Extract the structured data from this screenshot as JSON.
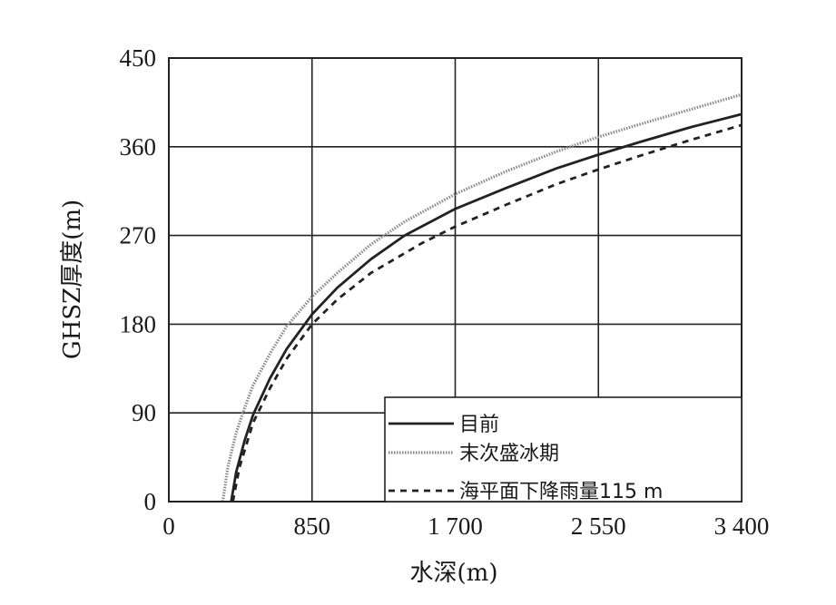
{
  "chart_data": {
    "type": "line",
    "xlabel": "水深(m)",
    "ylabel": "GHSZ厚度(m)",
    "xlim": [
      0,
      3400
    ],
    "ylim": [
      0,
      450
    ],
    "xticks": [
      0,
      850,
      1700,
      2550,
      3400
    ],
    "xtick_labels": [
      "0",
      "850",
      "1 700",
      "2 550",
      "3 400"
    ],
    "yticks": [
      0,
      90,
      180,
      270,
      360,
      450
    ],
    "ytick_labels": [
      "0",
      "90",
      "180",
      "270",
      "360",
      "450"
    ],
    "grid": true,
    "legend_position": "bottom-right",
    "series": [
      {
        "name": "目前",
        "style": "solid",
        "color": "#222222",
        "x": [
          370,
          400,
          450,
          500,
          600,
          700,
          850,
          1000,
          1200,
          1400,
          1700,
          2000,
          2300,
          2550,
          2800,
          3100,
          3400
        ],
        "y": [
          0,
          30,
          62,
          88,
          125,
          155,
          190,
          217,
          246,
          270,
          297,
          318,
          338,
          352,
          365,
          380,
          393
        ]
      },
      {
        "name": "末次盛冰期",
        "style": "hatched",
        "color": "#888888",
        "x": [
          320,
          350,
          400,
          450,
          500,
          600,
          700,
          850,
          1000,
          1200,
          1400,
          1700,
          2000,
          2300,
          2550,
          2800,
          3100,
          3400
        ],
        "y": [
          0,
          35,
          70,
          95,
          118,
          150,
          178,
          208,
          232,
          261,
          284,
          312,
          335,
          355,
          370,
          383,
          398,
          413
        ]
      },
      {
        "name": "海平面下降雨量115 m",
        "style": "dashed",
        "color": "#222222",
        "x": [
          380,
          420,
          500,
          600,
          700,
          850,
          1000,
          1200,
          1500,
          1700,
          2000,
          2300,
          2550,
          2800,
          3100,
          3400
        ],
        "y": [
          0,
          35,
          80,
          115,
          145,
          180,
          205,
          232,
          262,
          279,
          301,
          322,
          337,
          351,
          367,
          382
        ]
      }
    ]
  }
}
